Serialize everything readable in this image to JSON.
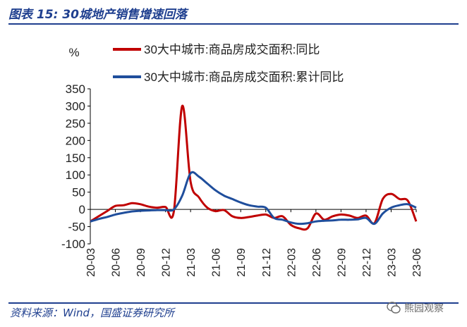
{
  "header": {
    "title": "图表 15:  30城地产销售增速回落"
  },
  "footer": {
    "source": "资料来源：Wind，国盛证券研究所",
    "watermark": "熊园观察"
  },
  "chart_data": {
    "type": "line",
    "ylabel": "%",
    "ylim": [
      -100,
      350
    ],
    "yticks": [
      350,
      300,
      250,
      200,
      150,
      100,
      50,
      0,
      -50,
      -100
    ],
    "x": [
      "20-03",
      "20-04",
      "20-05",
      "20-06",
      "20-07",
      "20-08",
      "20-09",
      "20-10",
      "20-11",
      "20-12",
      "21-01",
      "21-02",
      "21-03",
      "21-04",
      "21-05",
      "21-06",
      "21-07",
      "21-08",
      "21-09",
      "21-10",
      "21-11",
      "21-12",
      "22-01",
      "22-02",
      "22-03",
      "22-04",
      "22-05",
      "22-06",
      "22-07",
      "22-08",
      "22-09",
      "22-10",
      "22-11",
      "22-12",
      "23-01",
      "23-02",
      "23-03",
      "23-04",
      "23-05",
      "23-06"
    ],
    "xtick_labels": [
      "20-03",
      "20-06",
      "20-09",
      "20-12",
      "21-03",
      "21-06",
      "21-09",
      "21-12",
      "22-03",
      "22-06",
      "22-09",
      "22-12",
      "23-03",
      "23-06"
    ],
    "legend_position": "top",
    "series": [
      {
        "name": "30大中城市:商品房成交面积:同比",
        "color": "#c00000",
        "values": [
          -35,
          -20,
          -5,
          10,
          12,
          18,
          15,
          8,
          5,
          7,
          -5,
          300,
          80,
          35,
          5,
          -5,
          -2,
          -20,
          -25,
          -22,
          -18,
          -15,
          -25,
          -20,
          -45,
          -55,
          -55,
          -12,
          -30,
          -20,
          -15,
          -18,
          -25,
          -18,
          -40,
          30,
          45,
          30,
          25,
          -35
        ]
      },
      {
        "name": "30大中城市:商品房成交面积:累计同比",
        "color": "#1f4e9c",
        "values": [
          -35,
          -28,
          -22,
          -15,
          -10,
          -6,
          -4,
          -3,
          -2,
          -2,
          0,
          40,
          105,
          95,
          75,
          55,
          40,
          30,
          20,
          12,
          8,
          5,
          -25,
          -30,
          -38,
          -42,
          -40,
          -35,
          -33,
          -32,
          -30,
          -30,
          -29,
          -25,
          -42,
          -12,
          5,
          12,
          15,
          5
        ]
      }
    ]
  }
}
